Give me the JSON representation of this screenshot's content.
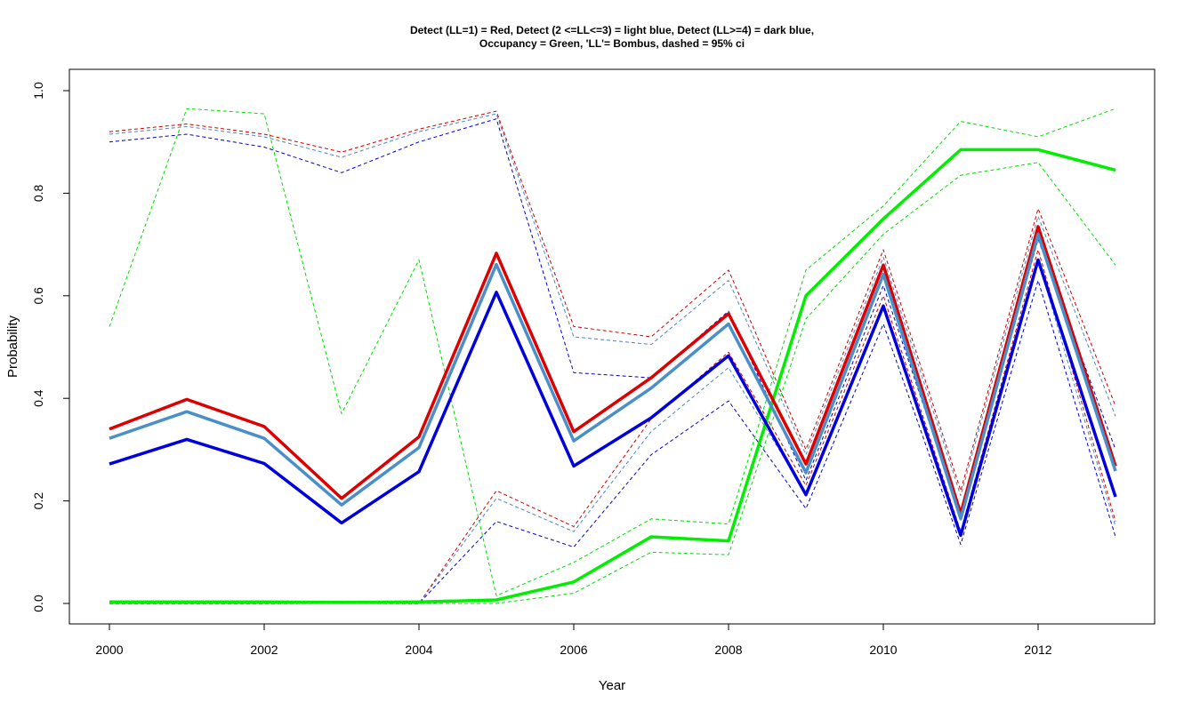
{
  "chart_data": {
    "type": "line",
    "title_lines": [
      "Detect (LL=1) = Red, Detect (2 <=LL<=3) = light blue, Detect (LL>=4) = dark blue,",
      "Occupancy = Green, 'LL'= Bombus, dashed = 95% ci"
    ],
    "xlabel": "Year",
    "ylabel": "Probability",
    "xlim": [
      2000,
      2013
    ],
    "ylim": [
      0,
      1
    ],
    "xticks": [
      2000,
      2002,
      2004,
      2006,
      2008,
      2010,
      2012
    ],
    "yticks": [
      "0.0",
      "0.2",
      "0.4",
      "0.6",
      "0.8",
      "1.0"
    ],
    "x": [
      2000,
      2001,
      2002,
      2003,
      2004,
      2005,
      2006,
      2007,
      2008,
      2009,
      2010,
      2011,
      2012,
      2013
    ],
    "series": [
      {
        "style": "dashed",
        "color": "#00dd00",
        "values": [
          0.54,
          0.965,
          0.955,
          0.37,
          0.67,
          0.015,
          0.08,
          0.165,
          0.155,
          0.65,
          0.775,
          0.94,
          0.91,
          0.965
        ]
      },
      {
        "style": "dashed",
        "color": "#00dd00",
        "values": [
          0.0,
          0.0,
          0.0,
          0.0,
          0.0,
          0.0,
          0.02,
          0.1,
          0.095,
          0.555,
          0.72,
          0.835,
          0.86,
          0.66
        ]
      },
      {
        "style": "dashed",
        "color": "#cc0000",
        "values": [
          0.92,
          0.935,
          0.915,
          0.88,
          0.925,
          0.96,
          0.54,
          0.52,
          0.65,
          0.3,
          0.69,
          0.22,
          0.77,
          0.385
        ]
      },
      {
        "style": "dashed",
        "color": "#cc0000",
        "values": [
          0.0,
          0.0,
          0.0,
          0.0,
          0.0,
          0.22,
          0.15,
          0.36,
          0.49,
          0.23,
          0.6,
          0.14,
          0.69,
          0.16
        ]
      },
      {
        "style": "dashed",
        "color": "#4a86c0",
        "values": [
          0.915,
          0.93,
          0.91,
          0.87,
          0.92,
          0.955,
          0.52,
          0.505,
          0.63,
          0.29,
          0.675,
          0.21,
          0.755,
          0.365
        ]
      },
      {
        "style": "dashed",
        "color": "#4a86c0",
        "values": [
          0.0,
          0.0,
          0.0,
          0.0,
          0.0,
          0.205,
          0.14,
          0.335,
          0.46,
          0.215,
          0.58,
          0.13,
          0.67,
          0.15
        ]
      },
      {
        "style": "dashed",
        "color": "#0000cc",
        "values": [
          0.9,
          0.915,
          0.89,
          0.84,
          0.9,
          0.945,
          0.45,
          0.44,
          0.57,
          0.24,
          0.62,
          0.17,
          0.71,
          0.3
        ]
      },
      {
        "style": "dashed",
        "color": "#0000cc",
        "values": [
          0.0,
          0.0,
          0.0,
          0.0,
          0.0,
          0.16,
          0.11,
          0.29,
          0.395,
          0.185,
          0.545,
          0.115,
          0.63,
          0.13
        ]
      },
      {
        "style": "solid",
        "color": "#00ee00",
        "values": [
          0.003,
          0.003,
          0.003,
          0.002,
          0.003,
          0.007,
          0.042,
          0.13,
          0.122,
          0.6,
          0.75,
          0.885,
          0.885,
          0.845
        ]
      },
      {
        "style": "solid",
        "color": "#dd0000",
        "values": [
          0.34,
          0.398,
          0.345,
          0.205,
          0.325,
          0.683,
          0.335,
          0.44,
          0.565,
          0.272,
          0.66,
          0.175,
          0.735,
          0.268
        ]
      },
      {
        "style": "solid",
        "color": "#4a8fc8",
        "values": [
          0.322,
          0.374,
          0.322,
          0.192,
          0.304,
          0.661,
          0.317,
          0.42,
          0.545,
          0.255,
          0.642,
          0.165,
          0.72,
          0.258
        ]
      },
      {
        "style": "solid",
        "color": "#0000dd",
        "values": [
          0.272,
          0.32,
          0.273,
          0.157,
          0.257,
          0.607,
          0.268,
          0.362,
          0.483,
          0.212,
          0.58,
          0.133,
          0.67,
          0.208
        ]
      }
    ]
  }
}
